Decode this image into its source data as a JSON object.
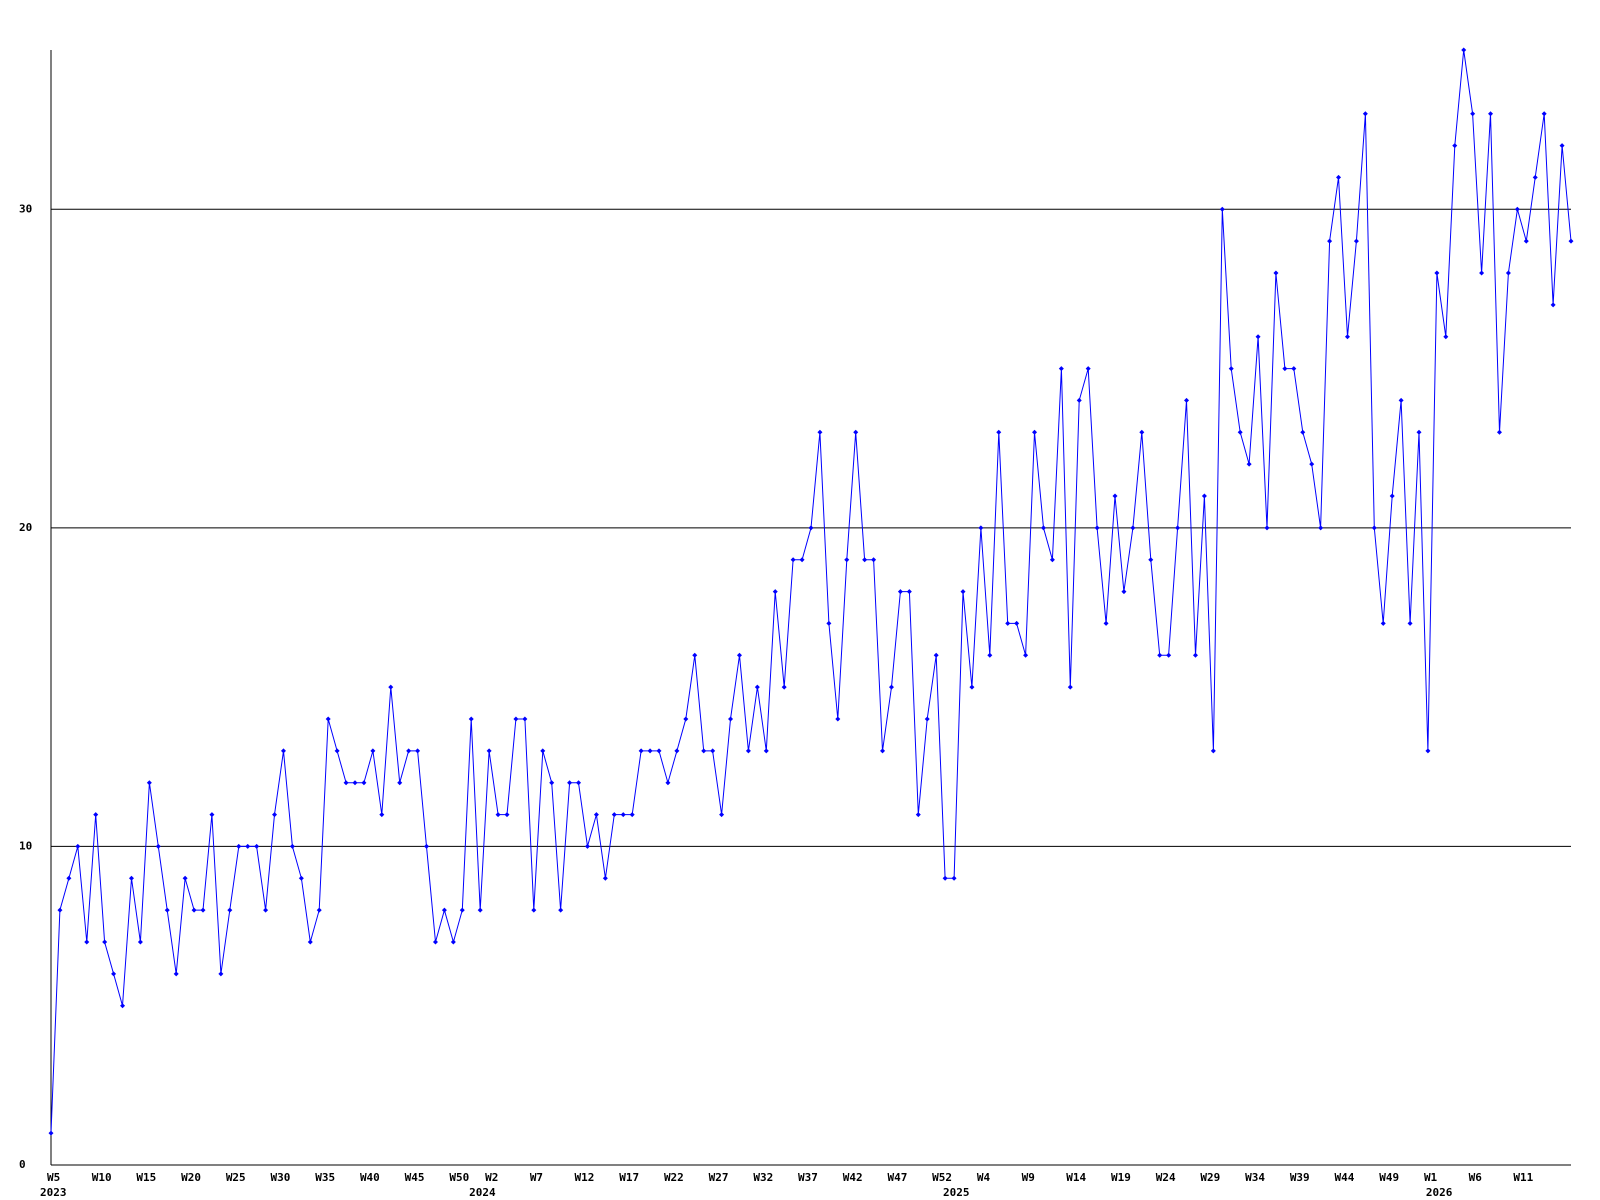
{
  "chart_data": {
    "type": "line",
    "categories": [
      "W5",
      null,
      null,
      null,
      null,
      "W10",
      null,
      null,
      null,
      null,
      "W15",
      null,
      null,
      null,
      null,
      "W20",
      null,
      null,
      null,
      null,
      "W25",
      null,
      null,
      null,
      null,
      "W30",
      null,
      null,
      null,
      null,
      "W35",
      null,
      null,
      null,
      null,
      "W40",
      null,
      null,
      null,
      null,
      "W45",
      null,
      null,
      null,
      null,
      "W50",
      null,
      null,
      null,
      "W2",
      null,
      null,
      null,
      null,
      "W7",
      null,
      null,
      null,
      null,
      "W12",
      null,
      null,
      null,
      null,
      "W17",
      null,
      null,
      null,
      null,
      "W22",
      null,
      null,
      null,
      null,
      "W27",
      null,
      null,
      null,
      null,
      "W32",
      null,
      null,
      null,
      null,
      "W37",
      null,
      null,
      null,
      null,
      "W42",
      null,
      null,
      null,
      null,
      "W47",
      null,
      null,
      null,
      null,
      "W52",
      null,
      null,
      null,
      null,
      "W4",
      null,
      null,
      null,
      null,
      "W9",
      null,
      null,
      null,
      null,
      "W14",
      null,
      null,
      null,
      null,
      "W19",
      null,
      null,
      null,
      null,
      "W24",
      null,
      null,
      null,
      null,
      "W29",
      null,
      null,
      null,
      null,
      "W34",
      null,
      null,
      null,
      null,
      "W39",
      null,
      null,
      null,
      null,
      "W44",
      null,
      null,
      null,
      null,
      "W49",
      null,
      null,
      null,
      null,
      "W1",
      null,
      null,
      null,
      null,
      "W6",
      null,
      null,
      null,
      null,
      "W11",
      null,
      null,
      null,
      null,
      null,
      null
    ],
    "category_years": [
      "2023",
      null,
      null,
      null,
      null,
      null,
      null,
      null,
      null,
      null,
      null,
      null,
      null,
      null,
      null,
      null,
      null,
      null,
      null,
      null,
      null,
      null,
      null,
      null,
      null,
      null,
      null,
      null,
      null,
      null,
      null,
      null,
      null,
      null,
      null,
      null,
      null,
      null,
      null,
      null,
      null,
      null,
      null,
      null,
      null,
      null,
      null,
      null,
      "2024",
      null,
      null,
      null,
      null,
      null,
      null,
      null,
      null,
      null,
      null,
      null,
      null,
      null,
      null,
      null,
      null,
      null,
      null,
      null,
      null,
      null,
      null,
      null,
      null,
      null,
      null,
      null,
      null,
      null,
      null,
      null,
      null,
      null,
      null,
      null,
      null,
      null,
      null,
      null,
      null,
      null,
      null,
      null,
      null,
      null,
      null,
      null,
      null,
      null,
      null,
      null,
      null,
      "2025",
      null,
      null,
      null,
      null,
      null,
      null,
      null,
      null,
      null,
      null,
      null,
      null,
      null,
      null,
      null,
      null,
      null,
      null,
      null,
      null,
      null,
      null,
      null,
      null,
      null,
      null,
      null,
      null,
      null,
      null,
      null,
      null,
      null,
      null,
      null,
      null,
      null,
      null,
      null,
      null,
      null,
      null,
      null,
      null,
      null,
      null,
      null,
      null,
      null,
      null,
      null,
      null,
      null,
      "2026",
      null,
      null,
      null,
      null,
      null,
      null,
      null,
      null,
      null,
      null,
      null,
      null,
      null,
      null,
      null,
      null
    ],
    "series": [
      {
        "color": "#0000ff",
        "values": [
          1,
          8,
          9,
          10,
          7,
          11,
          7,
          6,
          5,
          9,
          7,
          12,
          10,
          8,
          6,
          9,
          8,
          8,
          11,
          6,
          8,
          10,
          10,
          10,
          8,
          11,
          13,
          10,
          9,
          7,
          8,
          14,
          13,
          12,
          12,
          12,
          13,
          11,
          15,
          12,
          13,
          13,
          10,
          7,
          8,
          7,
          8,
          14,
          8,
          13,
          11,
          11,
          14,
          14,
          8,
          13,
          12,
          8,
          12,
          12,
          10,
          11,
          9,
          11,
          11,
          11,
          13,
          13,
          13,
          12,
          13,
          14,
          16,
          13,
          13,
          11,
          14,
          16,
          13,
          15,
          13,
          18,
          15,
          19,
          19,
          20,
          23,
          17,
          14,
          19,
          23,
          19,
          19,
          13,
          15,
          18,
          18,
          11,
          14,
          16,
          9,
          9,
          18,
          15,
          20,
          16,
          23,
          17,
          17,
          16,
          23,
          20,
          19,
          25,
          15,
          24,
          25,
          20,
          17,
          21,
          18,
          20,
          23,
          19,
          16,
          16,
          20,
          24,
          16,
          21,
          13,
          30,
          25,
          23,
          22,
          26,
          20,
          28,
          25,
          25,
          23,
          22,
          20,
          29,
          31,
          26,
          29,
          33,
          20,
          17,
          21,
          24,
          17,
          23,
          13,
          28,
          26,
          32,
          35,
          33,
          28,
          33,
          23,
          28,
          30,
          29,
          31,
          33,
          27,
          32,
          29
        ]
      }
    ],
    "ylim": [
      0,
      35
    ],
    "yticks": [
      0,
      10,
      20,
      30
    ],
    "grid": true
  }
}
